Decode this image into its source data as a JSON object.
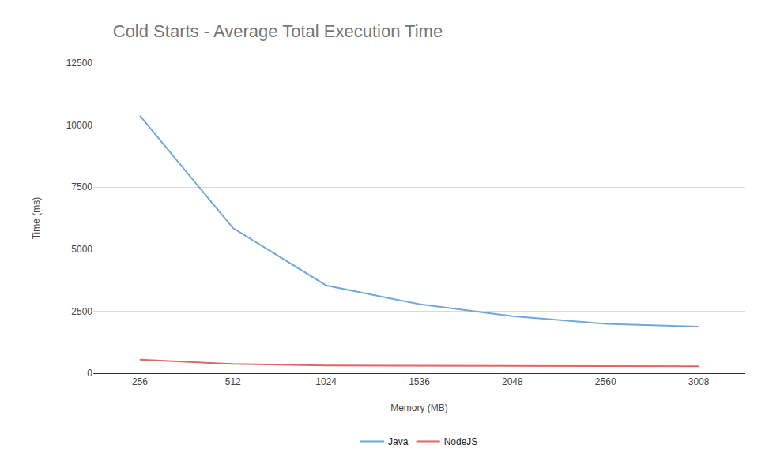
{
  "chart_data": {
    "type": "line",
    "title": "Cold Starts - Average Total Execution Time",
    "x_label": "Memory (MB)",
    "y_label": "Time (ms)",
    "categories": [
      "256",
      "512",
      "1024",
      "1536",
      "2048",
      "2560",
      "3008"
    ],
    "series": [
      {
        "name": "Java",
        "color": "#6fa8dc",
        "values": [
          10380,
          5850,
          3540,
          2780,
          2300,
          1990,
          1880
        ]
      },
      {
        "name": "NodeJS",
        "color": "#e06666",
        "values": [
          550,
          370,
          310,
          300,
          280,
          280,
          280
        ]
      }
    ],
    "ylim": [
      0,
      12500
    ],
    "yticks": [
      0,
      2500,
      5000,
      7500,
      10000,
      12500
    ],
    "grid": true,
    "legend": "bottom"
  }
}
